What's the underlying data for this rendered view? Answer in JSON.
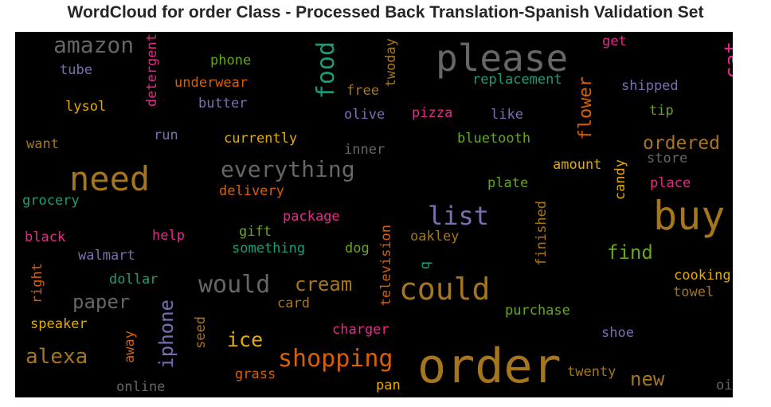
{
  "title": "WordCloud for order Class - Processed Back Translation-Spanish Validation Set",
  "colors": {
    "background": "#000000",
    "grey": "#666666",
    "gold": "#a6761d",
    "orange": "#d95f02",
    "teal": "#1b9e77",
    "purple": "#7570b3",
    "pink": "#e7298a",
    "green": "#66a61e",
    "yellow": "#e6ab02"
  },
  "words": [
    {
      "text": "amazon",
      "color": "grey"
    },
    {
      "text": "please",
      "color": "grey"
    },
    {
      "text": "food",
      "color": "teal"
    },
    {
      "text": "cat",
      "color": "pink"
    },
    {
      "text": "get",
      "color": "pink"
    },
    {
      "text": "tube",
      "color": "purple"
    },
    {
      "text": "phone",
      "color": "green"
    },
    {
      "text": "detergent",
      "color": "pink"
    },
    {
      "text": "underwear",
      "color": "orange"
    },
    {
      "text": "twoday",
      "color": "gold"
    },
    {
      "text": "replacement",
      "color": "teal"
    },
    {
      "text": "shipped",
      "color": "purple"
    },
    {
      "text": "free",
      "color": "gold"
    },
    {
      "text": "lysol",
      "color": "yellow"
    },
    {
      "text": "butter",
      "color": "purple"
    },
    {
      "text": "olive",
      "color": "purple"
    },
    {
      "text": "pizza",
      "color": "pink"
    },
    {
      "text": "like",
      "color": "purple"
    },
    {
      "text": "flower",
      "color": "orange"
    },
    {
      "text": "tip",
      "color": "green"
    },
    {
      "text": "run",
      "color": "purple"
    },
    {
      "text": "want",
      "color": "gold"
    },
    {
      "text": "currently",
      "color": "yellow"
    },
    {
      "text": "inner",
      "color": "grey"
    },
    {
      "text": "bluetooth",
      "color": "green"
    },
    {
      "text": "ordered",
      "color": "gold"
    },
    {
      "text": "store",
      "color": "grey"
    },
    {
      "text": "need",
      "color": "gold"
    },
    {
      "text": "everything",
      "color": "grey"
    },
    {
      "text": "amount",
      "color": "yellow"
    },
    {
      "text": "candy",
      "color": "yellow"
    },
    {
      "text": "delivery",
      "color": "orange"
    },
    {
      "text": "plate",
      "color": "green"
    },
    {
      "text": "place",
      "color": "pink"
    },
    {
      "text": "grocery",
      "color": "teal"
    },
    {
      "text": "list",
      "color": "purple"
    },
    {
      "text": "buy",
      "color": "gold"
    },
    {
      "text": "package",
      "color": "pink"
    },
    {
      "text": "finished",
      "color": "gold"
    },
    {
      "text": "black",
      "color": "pink"
    },
    {
      "text": "help",
      "color": "pink"
    },
    {
      "text": "gift",
      "color": "green"
    },
    {
      "text": "oakley",
      "color": "gold"
    },
    {
      "text": "walmart",
      "color": "purple"
    },
    {
      "text": "something",
      "color": "teal"
    },
    {
      "text": "dog",
      "color": "green"
    },
    {
      "text": "find",
      "color": "green"
    },
    {
      "text": "q",
      "color": "teal"
    },
    {
      "text": "right",
      "color": "orange"
    },
    {
      "text": "dollar",
      "color": "teal"
    },
    {
      "text": "would",
      "color": "grey"
    },
    {
      "text": "cream",
      "color": "gold"
    },
    {
      "text": "television",
      "color": "orange"
    },
    {
      "text": "could",
      "color": "gold"
    },
    {
      "text": "cooking",
      "color": "yellow"
    },
    {
      "text": "paper",
      "color": "grey"
    },
    {
      "text": "iphone",
      "color": "purple"
    },
    {
      "text": "card",
      "color": "gold"
    },
    {
      "text": "towel",
      "color": "gold"
    },
    {
      "text": "purchase",
      "color": "green"
    },
    {
      "text": "speaker",
      "color": "yellow"
    },
    {
      "text": "away",
      "color": "orange"
    },
    {
      "text": "seed",
      "color": "gold"
    },
    {
      "text": "charger",
      "color": "pink"
    },
    {
      "text": "shoe",
      "color": "purple"
    },
    {
      "text": "alexa",
      "color": "gold"
    },
    {
      "text": "ice",
      "color": "yellow"
    },
    {
      "text": "shopping",
      "color": "orange"
    },
    {
      "text": "order",
      "color": "gold"
    },
    {
      "text": "twenty",
      "color": "gold"
    },
    {
      "text": "new",
      "color": "gold"
    },
    {
      "text": "grass",
      "color": "orange"
    },
    {
      "text": "pan",
      "color": "yellow"
    },
    {
      "text": "online",
      "color": "grey"
    },
    {
      "text": "oil",
      "color": "grey"
    }
  ]
}
